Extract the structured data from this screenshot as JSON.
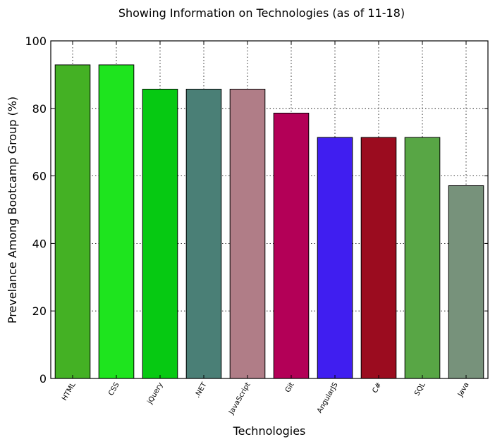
{
  "chart_data": {
    "type": "bar",
    "title": "Showing Information on Technologies (as of 11-18)",
    "xlabel": "Technologies",
    "ylabel": "Prevelance Among Bootcamp Group (%)",
    "ylim": [
      0,
      100
    ],
    "yticks": [
      "0",
      "20",
      "40",
      "60",
      "80",
      "100"
    ],
    "grid": true,
    "categories": [
      "HTML",
      "CSS",
      "jQuery",
      ".NET",
      "JavaScript",
      "Git",
      "AngularJS",
      "C#",
      "SQL",
      "Java"
    ],
    "values": [
      92.9,
      92.9,
      85.7,
      85.7,
      85.7,
      78.6,
      71.4,
      71.4,
      71.4,
      57.1
    ],
    "colors": [
      "#44b124",
      "#1ee41e",
      "#06c912",
      "#4a7f76",
      "#b07d87",
      "#b30057",
      "#401ef0",
      "#9b0c1f",
      "#58a645",
      "#77927b"
    ]
  }
}
